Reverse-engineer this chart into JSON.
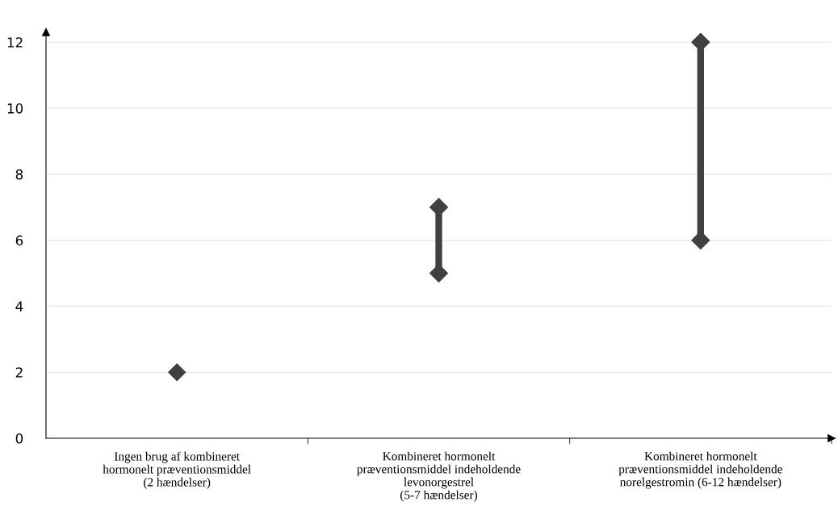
{
  "chart_data": {
    "type": "line",
    "categories": [
      "Ingen brug af kombineret\nhormonelt præventionsmiddel\n(2 hændelser)",
      "Kombineret hormonelt\npræventionsmiddel indeholdende\nlevonorgestrel\n(5-7 hændelser)",
      "Kombineret hormonelt\npræventionsmiddel indeholdende\nnorelgestromin (6-12 hændelser)"
    ],
    "series": [
      {
        "type": "scatter",
        "color": "#404040",
        "x": [
          "Ingen brug af kombineret\nhormonelt præventionsmiddel\n(2 hændelser)"
        ],
        "values": [
          2
        ]
      },
      {
        "color": "#404040",
        "x": [
          "Kombineret hormonelt\npræventionsmiddel indeholdende\nlevonorgestrel\n(5-7 hændelser)",
          "Kombineret hormonelt\npræventionsmiddel indeholdende\nlevonorgestrel\n(5-7 hændelser)"
        ],
        "values": [
          5,
          7
        ]
      },
      {
        "color": "#404040",
        "x": [
          "Kombineret hormonelt\npræventionsmiddel indeholdende\nnorelgestromin (6-12 hændelser)",
          "Kombineret hormonelt\npræventionsmiddel indeholdende\nnorelgestromin (6-12 hændelser)"
        ],
        "values": [
          6,
          12
        ]
      }
    ],
    "marker": "diamond",
    "line_style": "solid",
    "ylim": [
      0,
      12.3
    ],
    "yticks": [
      0,
      2,
      4,
      6,
      8,
      10,
      12
    ],
    "grid": "y"
  }
}
